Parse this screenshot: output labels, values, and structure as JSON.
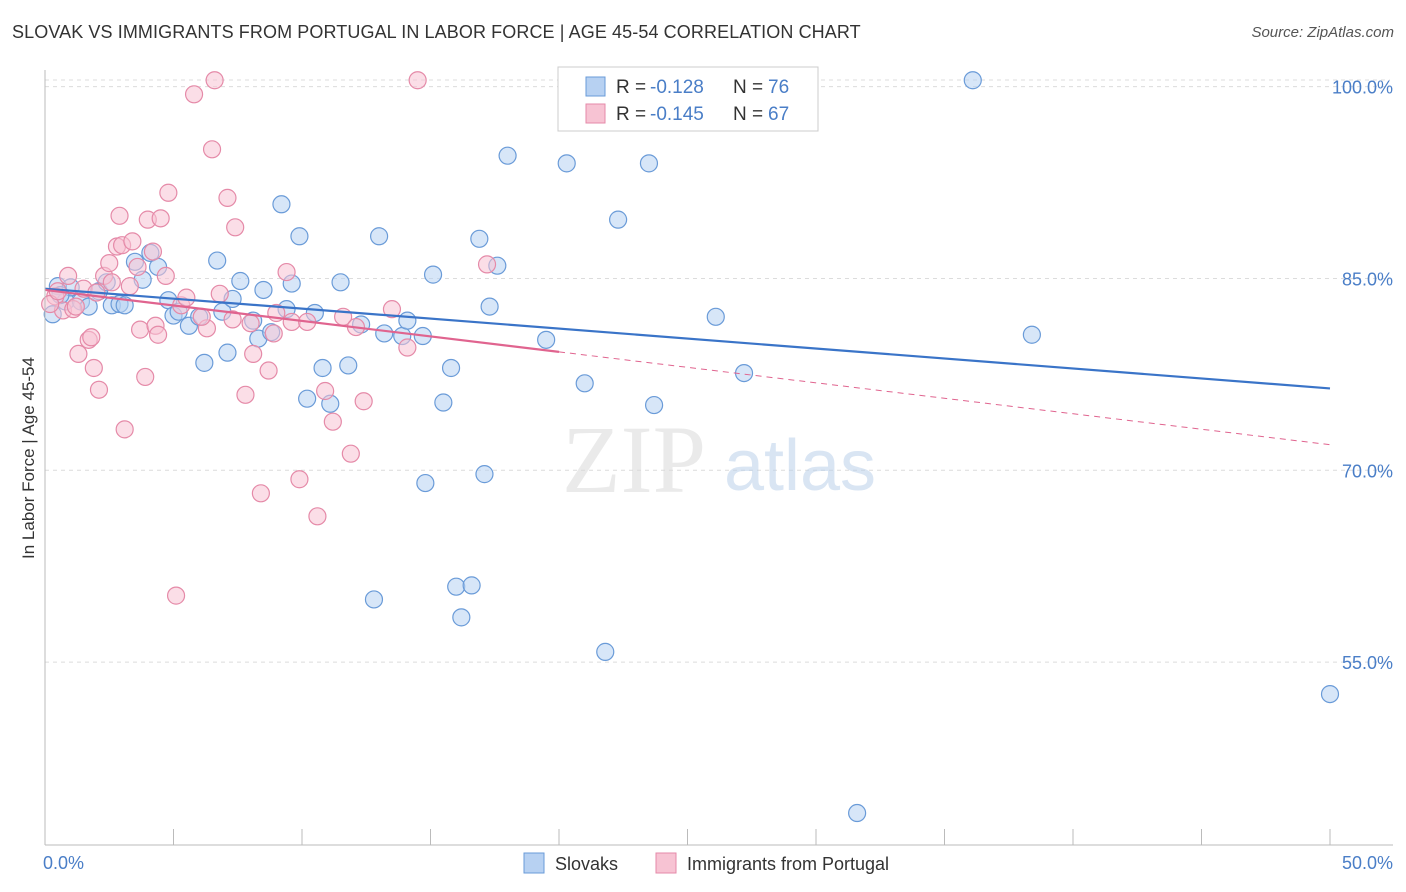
{
  "title": "SLOVAK VS IMMIGRANTS FROM PORTUGAL IN LABOR FORCE | AGE 45-54 CORRELATION CHART",
  "source": "Source: ZipAtlas.com",
  "watermark": {
    "zip": "ZIP",
    "atlas": "atlas"
  },
  "colors": {
    "blue_fill": "#b7d1f2",
    "blue_stroke": "#6a9bd8",
    "blue_line": "#3a74c8",
    "pink_fill": "#f7c3d3",
    "pink_stroke": "#e58aa8",
    "pink_line": "#e0648f",
    "grid": "#dcdcdc",
    "tick_text": "#4a7ec7"
  },
  "legend": {
    "r_label": "R =",
    "n_label": "N =",
    "rows": [
      {
        "r": "-0.128",
        "n": "76",
        "color": "blue"
      },
      {
        "r": "-0.145",
        "n": "67",
        "color": "pink"
      }
    ]
  },
  "bottom_legend": [
    "Slovaks",
    "Immigrants from Portugal"
  ],
  "chart_data": {
    "type": "scatter",
    "xlabel": "",
    "ylabel": "In Labor Force | Age 45-54",
    "x_tick_labels": [
      "0.0%",
      "50.0%"
    ],
    "y_tick_labels": [
      "100.0%",
      "85.0%",
      "70.0%",
      "55.0%"
    ],
    "xlim": [
      0,
      50
    ],
    "ylim": [
      40.7,
      101.3
    ],
    "y_ticks": [
      100,
      85,
      70,
      55
    ],
    "grid": true,
    "series": [
      {
        "name": "Slovaks",
        "color": "blue",
        "trend": {
          "x0": 0,
          "y0": 84.2,
          "x1": 50,
          "y1": 76.4,
          "dash_from": null
        },
        "points": [
          [
            0.5,
            84.4
          ],
          [
            0.8,
            83.2
          ],
          [
            1.0,
            84.3
          ],
          [
            1.4,
            83.2
          ],
          [
            1.7,
            82.8
          ],
          [
            2.1,
            84.0
          ],
          [
            2.4,
            84.7
          ],
          [
            2.6,
            82.9
          ],
          [
            2.9,
            83.0
          ],
          [
            3.1,
            82.9
          ],
          [
            3.5,
            86.3
          ],
          [
            3.8,
            84.9
          ],
          [
            4.1,
            87.0
          ],
          [
            4.4,
            85.9
          ],
          [
            4.8,
            83.3
          ],
          [
            5.0,
            82.1
          ],
          [
            5.2,
            82.4
          ],
          [
            5.6,
            81.3
          ],
          [
            6.0,
            82.0
          ],
          [
            6.2,
            78.4
          ],
          [
            6.7,
            86.4
          ],
          [
            6.9,
            82.4
          ],
          [
            7.1,
            79.2
          ],
          [
            7.3,
            83.4
          ],
          [
            7.6,
            84.8
          ],
          [
            8.1,
            81.7
          ],
          [
            8.3,
            80.3
          ],
          [
            8.5,
            84.1
          ],
          [
            8.8,
            80.8
          ],
          [
            9.2,
            90.8
          ],
          [
            9.4,
            82.6
          ],
          [
            9.6,
            84.6
          ],
          [
            9.9,
            88.3
          ],
          [
            10.2,
            75.6
          ],
          [
            10.5,
            82.3
          ],
          [
            10.8,
            78.0
          ],
          [
            11.1,
            75.2
          ],
          [
            11.5,
            84.7
          ],
          [
            11.8,
            78.2
          ],
          [
            12.3,
            81.4
          ],
          [
            12.8,
            59.9
          ],
          [
            13.0,
            88.3
          ],
          [
            13.2,
            80.7
          ],
          [
            13.9,
            80.5
          ],
          [
            14.1,
            81.7
          ],
          [
            14.7,
            80.5
          ],
          [
            14.8,
            69.0
          ],
          [
            15.1,
            85.3
          ],
          [
            15.5,
            75.3
          ],
          [
            15.8,
            78.0
          ],
          [
            16.0,
            60.9
          ],
          [
            16.2,
            58.5
          ],
          [
            16.6,
            61.0
          ],
          [
            16.9,
            88.1
          ],
          [
            17.1,
            69.7
          ],
          [
            17.3,
            82.8
          ],
          [
            17.6,
            86.0
          ],
          [
            18.0,
            94.6
          ],
          [
            19.5,
            80.2
          ],
          [
            20.3,
            94.0
          ],
          [
            20.5,
            100.5
          ],
          [
            21.0,
            76.8
          ],
          [
            21.8,
            55.8
          ],
          [
            22.3,
            89.6
          ],
          [
            23.5,
            94.0
          ],
          [
            23.7,
            75.1
          ],
          [
            24.7,
            100.5
          ],
          [
            26.1,
            82.0
          ],
          [
            27.2,
            77.6
          ],
          [
            28.2,
            100.5
          ],
          [
            31.6,
            43.2
          ],
          [
            36.1,
            100.5
          ],
          [
            38.4,
            80.6
          ],
          [
            50.0,
            52.5
          ],
          [
            0.3,
            82.2
          ],
          [
            0.6,
            83.7
          ]
        ]
      },
      {
        "name": "Immigrants from Portugal",
        "color": "pink",
        "trend": {
          "x0": 0,
          "y0": 84.1,
          "x1": 50,
          "y1": 72.0,
          "dash_from": 20.0
        },
        "points": [
          [
            0.4,
            83.6
          ],
          [
            0.7,
            82.5
          ],
          [
            0.9,
            85.2
          ],
          [
            1.1,
            82.6
          ],
          [
            1.3,
            79.1
          ],
          [
            1.5,
            84.2
          ],
          [
            1.7,
            80.2
          ],
          [
            1.8,
            80.4
          ],
          [
            1.9,
            78.0
          ],
          [
            2.1,
            76.3
          ],
          [
            2.3,
            85.2
          ],
          [
            2.5,
            86.2
          ],
          [
            2.6,
            84.7
          ],
          [
            2.8,
            87.5
          ],
          [
            2.9,
            89.9
          ],
          [
            3.0,
            87.6
          ],
          [
            3.1,
            73.2
          ],
          [
            3.4,
            87.9
          ],
          [
            3.6,
            85.9
          ],
          [
            3.7,
            81.0
          ],
          [
            3.9,
            77.3
          ],
          [
            4.0,
            89.6
          ],
          [
            4.2,
            87.1
          ],
          [
            4.3,
            81.3
          ],
          [
            4.5,
            89.7
          ],
          [
            4.7,
            85.2
          ],
          [
            4.8,
            91.7
          ],
          [
            5.1,
            60.2
          ],
          [
            5.3,
            82.9
          ],
          [
            5.5,
            83.5
          ],
          [
            5.8,
            99.4
          ],
          [
            6.3,
            81.1
          ],
          [
            6.5,
            95.1
          ],
          [
            6.6,
            100.5
          ],
          [
            6.8,
            83.8
          ],
          [
            7.1,
            91.3
          ],
          [
            7.3,
            81.8
          ],
          [
            7.4,
            89.0
          ],
          [
            7.8,
            75.9
          ],
          [
            8.1,
            79.1
          ],
          [
            8.4,
            68.2
          ],
          [
            8.7,
            77.8
          ],
          [
            8.9,
            80.7
          ],
          [
            9.0,
            82.3
          ],
          [
            9.4,
            85.5
          ],
          [
            9.6,
            81.6
          ],
          [
            9.9,
            69.3
          ],
          [
            10.2,
            81.6
          ],
          [
            10.6,
            66.4
          ],
          [
            10.9,
            76.2
          ],
          [
            11.2,
            73.8
          ],
          [
            11.6,
            82.0
          ],
          [
            11.9,
            71.3
          ],
          [
            12.4,
            75.4
          ],
          [
            13.5,
            82.6
          ],
          [
            14.1,
            79.6
          ],
          [
            14.5,
            100.5
          ],
          [
            17.2,
            86.1
          ],
          [
            0.2,
            83.0
          ],
          [
            0.5,
            84.0
          ],
          [
            1.2,
            82.8
          ],
          [
            2.0,
            83.9
          ],
          [
            3.3,
            84.4
          ],
          [
            4.4,
            80.6
          ],
          [
            6.1,
            82.0
          ],
          [
            8.0,
            81.5
          ],
          [
            12.1,
            81.2
          ]
        ]
      }
    ]
  }
}
